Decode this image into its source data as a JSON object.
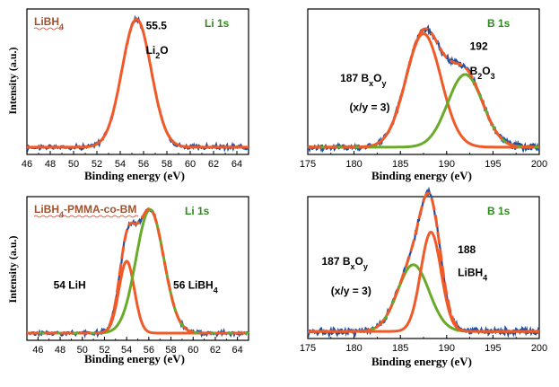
{
  "chart_data": [
    {
      "id": "p1",
      "type": "line",
      "sample": "LiBH",
      "sample_sub": "4",
      "sample_tail": "",
      "sample_color": "#a0522d",
      "element": "Li 1s",
      "element_color": "#2e8b1e",
      "xlabel": "Binding energy (eV)",
      "ylabel": "Intensity (a.u.)",
      "xlim": [
        46,
        65
      ],
      "xticks": [
        46,
        48,
        50,
        52,
        54,
        56,
        58,
        60,
        62,
        64
      ],
      "baseline": 0.05,
      "noise": 0.012,
      "peaks": [
        {
          "center": 55.4,
          "amp": 0.88,
          "sigma": 1.25,
          "color": "#f05a28"
        }
      ],
      "show_envelope": false,
      "annotations": [
        {
          "value": "55.5",
          "x": 56.2,
          "y": 0.86
        },
        {
          "value": "Li",
          "sub": "2",
          "tail": "O",
          "x": 56.2,
          "y": 0.69
        }
      ]
    },
    {
      "id": "p2",
      "type": "line",
      "sample": "",
      "element": "B 1s",
      "element_color": "#2e8b1e",
      "xlabel": "Binding energy (eV)",
      "ylabel": "",
      "xlim": [
        175,
        200
      ],
      "xticks": [
        175,
        180,
        185,
        190,
        195,
        200
      ],
      "baseline": 0.05,
      "noise": 0.018,
      "peaks": [
        {
          "center": 187.5,
          "amp": 0.78,
          "sigma": 1.9,
          "color": "#f05a28"
        },
        {
          "center": 192.0,
          "amp": 0.5,
          "sigma": 1.9,
          "color": "#6aaa2a"
        }
      ],
      "show_envelope": true,
      "envelope_color": "#f05a28",
      "annotations": [
        {
          "value": "192",
          "x": 192.5,
          "y": 0.72
        },
        {
          "value": "B",
          "sub": "2",
          "tail": "O",
          "sub2": "3",
          "x": 192.5,
          "y": 0.55
        },
        {
          "value": "187 B",
          "sub": "x",
          "tail": "O",
          "sub2": "y",
          "x": 178.5,
          "y": 0.5
        },
        {
          "value": "(x/y = 3)",
          "x": 179.5,
          "y": 0.3
        }
      ]
    },
    {
      "id": "p3",
      "type": "line",
      "sample": "LiBH",
      "sample_sub": "4",
      "sample_tail": "-PMMA-co-BM",
      "sample_color": "#a0522d",
      "element": "Li 1s",
      "element_color": "#2e8b1e",
      "xlabel": "Binding energy (eV)",
      "ylabel": "Intensity (a.u.)",
      "xlim": [
        45,
        65
      ],
      "xticks": [
        46,
        48,
        50,
        52,
        54,
        56,
        58,
        60,
        62,
        64
      ],
      "baseline": 0.05,
      "noise": 0.012,
      "peaks": [
        {
          "center": 54.0,
          "amp": 0.5,
          "sigma": 0.7,
          "color": "#f05a28"
        },
        {
          "center": 56.1,
          "amp": 0.86,
          "sigma": 1.25,
          "color": "#6aaa2a"
        }
      ],
      "show_envelope": true,
      "envelope_color": "#f05a28",
      "annotations": [
        {
          "value": "54 LiH",
          "x": 47.4,
          "y": 0.36
        },
        {
          "value": "56 LiBH",
          "sub": "4",
          "x": 58.2,
          "y": 0.36
        }
      ]
    },
    {
      "id": "p4",
      "type": "line",
      "sample": "",
      "element": "B 1s",
      "element_color": "#2e8b1e",
      "xlabel": "Binding energy (eV)",
      "ylabel": "",
      "xlim": [
        175,
        200
      ],
      "xticks": [
        175,
        180,
        185,
        190,
        195,
        200
      ],
      "baseline": 0.05,
      "noise": 0.018,
      "peaks": [
        {
          "center": 186.4,
          "amp": 0.47,
          "sigma": 1.7,
          "color": "#6aaa2a"
        },
        {
          "center": 188.3,
          "amp": 0.7,
          "sigma": 1.1,
          "color": "#f05a28"
        }
      ],
      "show_envelope": true,
      "envelope_color": "#f05a28",
      "annotations": [
        {
          "value": "188",
          "x": 191.2,
          "y": 0.6
        },
        {
          "value": "LiBH",
          "sub": "4",
          "x": 191.2,
          "y": 0.44
        },
        {
          "value": "187 B",
          "sub": "x",
          "tail": "O",
          "sub2": "y",
          "x": 176.5,
          "y": 0.52
        },
        {
          "value": "(x/y = 3)",
          "x": 177.5,
          "y": 0.31
        }
      ]
    }
  ]
}
